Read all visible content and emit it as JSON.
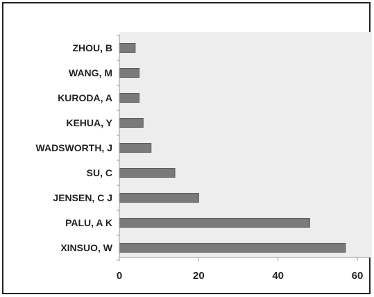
{
  "chart_data": {
    "type": "bar",
    "orientation": "horizontal",
    "categories": [
      "ZHOU, B",
      "WANG, M",
      "KURODA, A",
      "KEHUA, Y",
      "WADSWORTH, J",
      "SU, C",
      "JENSEN, C J",
      "PALU, A K",
      "XINSUO, W"
    ],
    "values": [
      4,
      5,
      5,
      6,
      8,
      14,
      20,
      48,
      57
    ],
    "title": "",
    "xlabel": "",
    "ylabel": "",
    "xlim": [
      0,
      60
    ],
    "xticks": [
      0,
      20,
      40,
      60
    ],
    "grid": false,
    "legend": "none",
    "colors": {
      "bar": "#7a7a7a",
      "bar_edge": "#5a5a5a",
      "plot_background": "#ededed",
      "axis": "#999999",
      "text": "#222222"
    }
  }
}
